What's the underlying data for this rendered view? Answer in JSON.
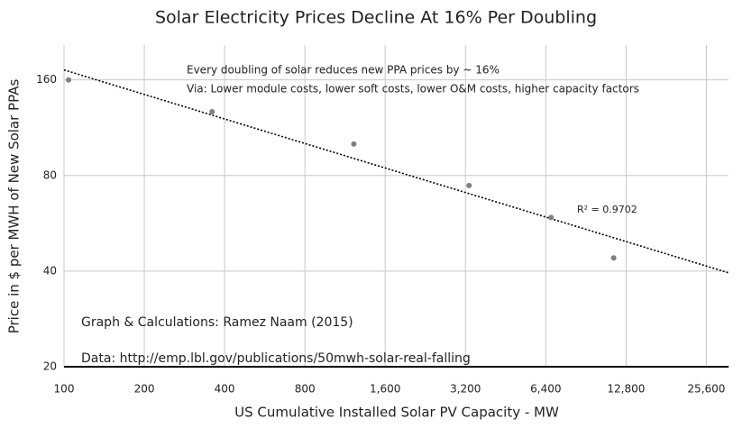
{
  "chart_data": {
    "type": "scatter",
    "title": "Solar Electricity Prices Decline At 16% Per Doubling",
    "xlabel": "US Cumulative Installed Solar PV Capacity - MW",
    "ylabel": "Price in $ per MWH of New Solar PPAs",
    "x_log": true,
    "y_log": true,
    "grid": true,
    "xlim": [
      100,
      31000
    ],
    "ylim": [
      20,
      206
    ],
    "xticks": [
      100,
      200,
      400,
      800,
      {
        "value": 1600,
        "label": "1,600"
      },
      {
        "value": 3200,
        "label": "3,200"
      },
      {
        "value": 6400,
        "label": "6,400"
      },
      {
        "value": 12800,
        "label": "12,800"
      },
      {
        "value": 25600,
        "label": "25,600"
      }
    ],
    "yticks": [
      20,
      40,
      80,
      160
    ],
    "series": [
      {
        "color": "#808080",
        "x": [
          104,
          359,
          1220,
          3300,
          6700,
          11500
        ],
        "values": [
          160,
          127,
          100.5,
          74.4,
          59,
          44
        ]
      }
    ],
    "trendline": {
      "color": "#000000",
      "x": [
        100,
        31000
      ],
      "values": [
        172,
        39.5
      ]
    },
    "annotations": [
      "Every doubling of solar reduces new PPA prices by ~ 16%",
      "Via: Lower module costs, lower soft costs, lower O&M costs, higher capacity factors",
      "R² = 0.9702",
      "Graph & Calculations: Ramez Naam (2015)",
      "Data: http://emp.lbl.gov/publications/50mwh-solar-real-falling"
    ]
  }
}
